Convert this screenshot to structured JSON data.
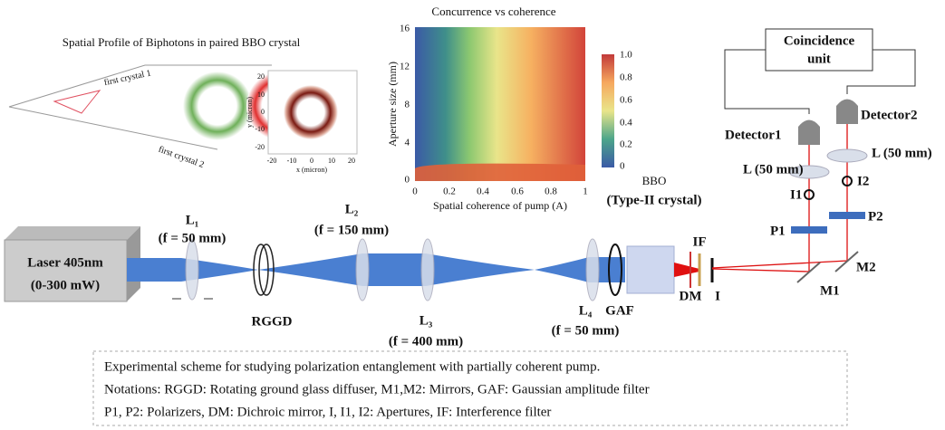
{
  "spatial_profile": {
    "title": "Spatial Profile of Biphotons in paired BBO crystal",
    "crystal1": "first crystal 1",
    "crystal2": "first crystal 2",
    "inset_xlabel": "x (micron)",
    "inset_ylabel": "y (micron)",
    "inset_xticks": [
      "-20",
      "-10",
      "0",
      "10",
      "20"
    ],
    "inset_yticks": [
      "20",
      "10",
      "0",
      "-10",
      "-20"
    ]
  },
  "heatmap": {
    "title": "Concurrence vs coherence",
    "xlabel": "Spatial coherence of pump (A)",
    "ylabel": "Aperture size (mm)",
    "xticks": [
      "0",
      "0.2",
      "0.4",
      "0.6",
      "0.8",
      "1"
    ],
    "yticks": [
      "16",
      "12",
      "8",
      "4",
      "0"
    ],
    "colorbar_ticks": [
      "1.0",
      "0.8",
      "0.6",
      "0.4",
      "0.2",
      "0"
    ]
  },
  "setup": {
    "laser": "Laser 405nm",
    "laser_power": "(0-300 mW)",
    "l1": "L₁",
    "l1_focal": "(f = 50 mm)",
    "rggd": "RGGD",
    "l2": "L₂",
    "l2_focal": "(f = 150 mm)",
    "l3": "L₃",
    "l3_focal": "(f = 400 mm)",
    "l4": "L₄",
    "gaf": "GAF",
    "l4_focal": "(f = 50 mm)",
    "bbo": "BBO",
    "bbo_type": "(Type-II crystal)",
    "if": "IF",
    "dm": "DM",
    "i": "I",
    "m1": "M1",
    "m2": "M2",
    "p1": "P1",
    "p2": "P2",
    "i1": "I1",
    "i2": "I2",
    "l_left": "L (50 mm)",
    "l_right": "L (50 mm)",
    "detector1": "Detector1",
    "detector2": "Detector2",
    "coincidence": "Coincidence",
    "unit": "unit"
  },
  "caption": {
    "lines": [
      "Experimental scheme for studying polarization entanglement with partially coherent pump.",
      "Notations: RGGD: Rotating ground glass diffuser, M1,M2: Mirrors, GAF: Gaussian amplitude filter",
      "P1, P2: Polarizers, DM: Dichroic mirror,  I, I1, I2: Apertures, IF: Interference filter"
    ]
  }
}
